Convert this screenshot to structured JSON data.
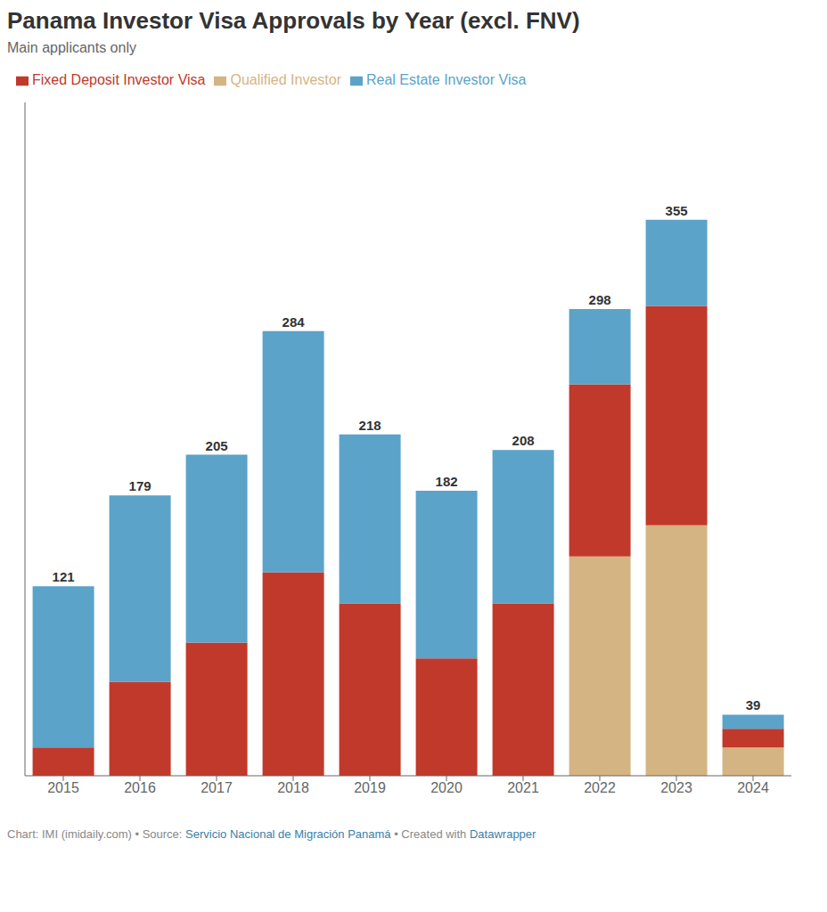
{
  "chart_data": {
    "type": "bar",
    "stacked": true,
    "title": "Panama Investor Visa Approvals by Year (excl. FNV)",
    "subtitle": "Main applicants only",
    "categories": [
      "2015",
      "2016",
      "2017",
      "2018",
      "2019",
      "2020",
      "2021",
      "2022",
      "2023",
      "2024"
    ],
    "series": [
      {
        "name": "Qualified Investor",
        "color": "#D4B483",
        "values": [
          0,
          0,
          0,
          0,
          0,
          0,
          0,
          140,
          160,
          18
        ]
      },
      {
        "name": "Fixed Deposit Investor Visa",
        "color": "#C0392B",
        "values": [
          18,
          60,
          85,
          130,
          110,
          75,
          110,
          110,
          140,
          12
        ]
      },
      {
        "name": "Real Estate Investor Visa",
        "color": "#5BA3C9",
        "values": [
          103,
          119,
          120,
          154,
          108,
          107,
          98,
          48,
          55,
          9
        ]
      }
    ],
    "totals": [
      121,
      179,
      205,
      284,
      218,
      182,
      208,
      298,
      355,
      39
    ],
    "ylim": [
      0,
      430
    ],
    "tick_labels": "x",
    "grid": false,
    "legend": "upper left",
    "annotations": [
      "Chart: IMI (imidaily.com) • Source: ",
      "Servicio Nacional de Migración Panamá",
      " • Created with ",
      "Datawrapper"
    ]
  }
}
